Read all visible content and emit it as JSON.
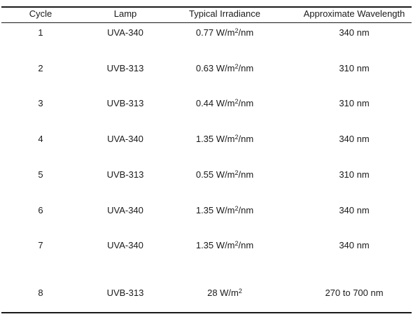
{
  "table": {
    "headers": [
      "Cycle",
      "Lamp",
      "Typical Irradiance",
      "Approximate Wavelength"
    ],
    "rows": [
      {
        "cycle": "1",
        "lamp": "UVA-340",
        "irr_value": "0.77 W/m",
        "irr_sup": "2",
        "irr_suffix": "/nm",
        "wavelength": "340 nm"
      },
      {
        "cycle": "2",
        "lamp": "UVB-313",
        "irr_value": "0.63 W/m",
        "irr_sup": "2",
        "irr_suffix": "/nm",
        "wavelength": "310 nm"
      },
      {
        "cycle": "3",
        "lamp": "UVB-313",
        "irr_value": "0.44 W/m",
        "irr_sup": "2",
        "irr_suffix": "/nm",
        "wavelength": "310 nm"
      },
      {
        "cycle": "4",
        "lamp": "UVA-340",
        "irr_value": "1.35 W/m",
        "irr_sup": "2",
        "irr_suffix": "/nm",
        "wavelength": "340 nm"
      },
      {
        "cycle": "5",
        "lamp": "UVB-313",
        "irr_value": "0.55 W/m",
        "irr_sup": "2",
        "irr_suffix": "/nm",
        "wavelength": "310 nm"
      },
      {
        "cycle": "6",
        "lamp": "UVA-340",
        "irr_value": "1.35 W/m",
        "irr_sup": "2",
        "irr_suffix": "/nm",
        "wavelength": "340 nm"
      },
      {
        "cycle": "7",
        "lamp": "UVA-340",
        "irr_value": "1.35 W/m",
        "irr_sup": "2",
        "irr_suffix": "/nm",
        "wavelength": "340 nm"
      },
      {
        "cycle": "8",
        "lamp": "UVB-313",
        "irr_value": "28 W/m",
        "irr_sup": "2",
        "irr_suffix": "",
        "wavelength": "270 to 700 nm"
      }
    ]
  }
}
